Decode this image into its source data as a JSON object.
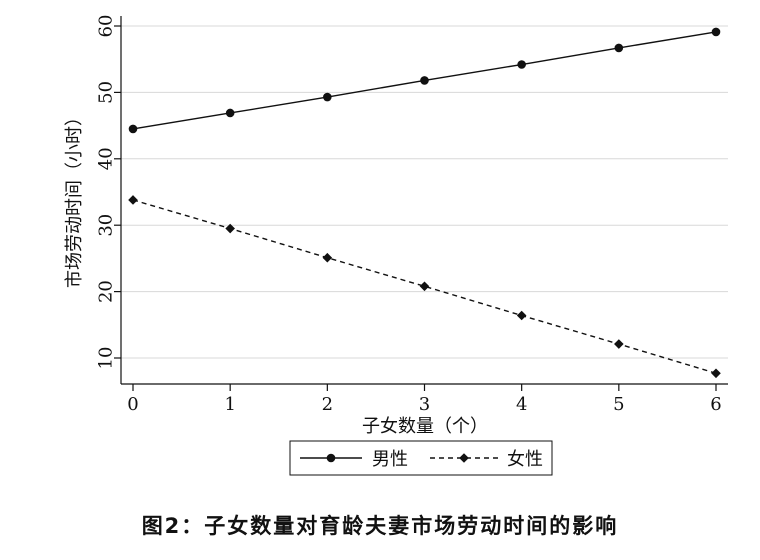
{
  "caption": "图2：子女数量对育龄夫妻市场劳动时间的影响",
  "chart_data": {
    "type": "line",
    "xlabel": "子女数量（个）",
    "ylabel": "市场劳动时间（小时）",
    "x": [
      0,
      1,
      2,
      3,
      4,
      5,
      6
    ],
    "xlim": [
      0,
      6
    ],
    "ylim": [
      5,
      62
    ],
    "yticks": [
      10,
      20,
      30,
      40,
      50,
      60
    ],
    "grid": true,
    "legend_position": "bottom",
    "series": [
      {
        "name": "男性",
        "values": [
          44.5,
          46.9,
          49.3,
          51.8,
          54.2,
          56.7,
          59.1
        ],
        "line_style": "solid",
        "marker": "circle",
        "color": "#111111"
      },
      {
        "name": "女性",
        "values": [
          33.8,
          29.5,
          25.1,
          20.8,
          16.4,
          12.1,
          7.7
        ],
        "line_style": "dashed",
        "marker": "diamond",
        "color": "#111111"
      }
    ]
  }
}
